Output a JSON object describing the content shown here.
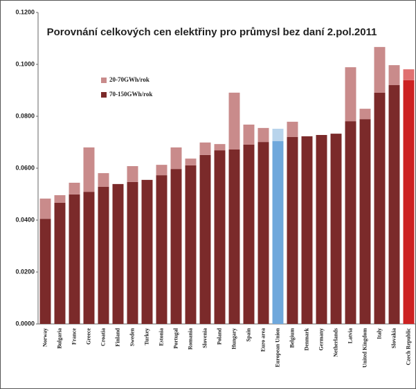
{
  "chart_data": {
    "type": "stacked_bar",
    "title": "Porovnání celkových cen elektřiny pro průmysl bez daní 2.pol.2011",
    "categories": [
      "Norway",
      "Bulgaria",
      "France",
      "Greece",
      "Croatia",
      "Finland",
      "Sweden",
      "Turkey",
      "Estonia",
      "Portugal",
      "Romania",
      "Slovenia",
      "Poland",
      "Hungary",
      "Spain",
      "Euro area",
      "European Union",
      "Belgium",
      "Denmark",
      "Germany",
      "Netherlands",
      "Latvia",
      "United Kingdom",
      "Italy",
      "Slovakia",
      "Czech Republic"
    ],
    "series": [
      {
        "name": "70-150GWh/rok",
        "color": "#7b2a2a",
        "colors": {
          "16": "#6fa8dc",
          "25": "#cc2222"
        },
        "values": [
          0.0405,
          0.0467,
          0.0499,
          0.0509,
          0.0528,
          0.0539,
          0.0547,
          0.0555,
          0.0573,
          0.0597,
          0.0611,
          0.0651,
          0.0669,
          0.0672,
          0.0691,
          0.0701,
          0.0704,
          0.072,
          0.0723,
          0.0728,
          0.0733,
          0.0781,
          0.0789,
          0.0891,
          0.092,
          0.0939
        ]
      },
      {
        "name": "20-70GWh/rok",
        "color": "#c98b8b",
        "colors": {
          "16": "#b8d4ec",
          "25": "#e07070"
        },
        "values": [
          0.0078,
          0.0029,
          0.0045,
          0.0171,
          0.0053,
          0,
          0.0061,
          0,
          0.004,
          0.0083,
          0.0026,
          0.0048,
          0.0024,
          0.0219,
          0.0077,
          0.0054,
          0.0048,
          0.0059,
          0,
          0,
          0,
          0.0208,
          0.004,
          0.0176,
          0.0077,
          0.0042
        ]
      }
    ],
    "ylim": [
      0,
      0.12
    ],
    "yticks": [
      {
        "value": 0,
        "label": "0.0000"
      },
      {
        "value": 0.02,
        "label": "0.0200"
      },
      {
        "value": 0.04,
        "label": "0.0400"
      },
      {
        "value": 0.06,
        "label": "0.0600"
      },
      {
        "value": 0.08,
        "label": "0.0800"
      },
      {
        "value": 0.1,
        "label": "0.1000"
      },
      {
        "value": 0.12,
        "label": "0.1200"
      }
    ],
    "grid": false,
    "legend": "upper left"
  }
}
